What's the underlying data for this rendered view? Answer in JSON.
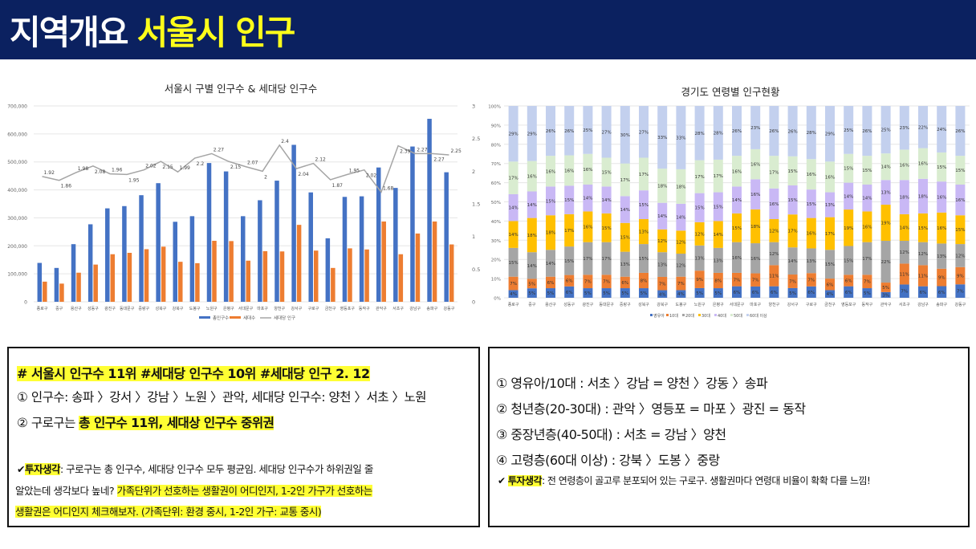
{
  "header": {
    "title_white": "지역개요",
    "title_yellow": "서울시 인구"
  },
  "chart_data": [
    {
      "type": "bar",
      "title": "서울시 구별 인구수 & 세대당 인구수",
      "categories": [
        "종로구",
        "중구",
        "용산구",
        "성동구",
        "광진구",
        "동대문구",
        "중랑구",
        "성북구",
        "강북구",
        "도봉구",
        "노원구",
        "은평구",
        "서대문구",
        "마포구",
        "양천구",
        "강서구",
        "구로구",
        "금천구",
        "영등포구",
        "동작구",
        "관악구",
        "서초구",
        "강남구",
        "송파구",
        "강동구"
      ],
      "series": [
        {
          "name": "총인구수",
          "axis": "left",
          "type": "bar",
          "color": "#4472c4",
          "values": [
            139000,
            121000,
            206000,
            277000,
            334000,
            342000,
            381000,
            424000,
            286000,
            306000,
            496000,
            466000,
            306000,
            363000,
            433000,
            561000,
            391000,
            227000,
            375000,
            377000,
            480000,
            407000,
            555000,
            654000,
            463000
          ]
        },
        {
          "name": "세대수",
          "axis": "left",
          "type": "bar",
          "color": "#ed7d31",
          "values": [
            72000,
            65000,
            104000,
            133000,
            170000,
            175000,
            188000,
            197000,
            143000,
            138000,
            218000,
            217000,
            147000,
            181000,
            180000,
            275000,
            183000,
            121000,
            191000,
            187000,
            287000,
            170000,
            244000,
            287000,
            205000
          ]
        },
        {
          "name": "세대당 인구",
          "axis": "right",
          "type": "line",
          "color": "#a5a5a5",
          "values": [
            1.92,
            1.86,
            1.98,
            2.08,
            1.96,
            1.95,
            2.02,
            2.15,
            1.99,
            2.2,
            2.27,
            2.15,
            2.07,
            2.0,
            2.4,
            2.04,
            2.12,
            1.87,
            1.95,
            2.02,
            1.68,
            2.39,
            2.27,
            2.27,
            2.25
          ]
        }
      ],
      "y_left": {
        "ylim": [
          0,
          700000
        ],
        "ticks": [
          "0",
          "100,000",
          "200,000",
          "300,000",
          "400,000",
          "500,000",
          "600,000",
          "700,000"
        ]
      },
      "y_right": {
        "ylim": [
          0,
          3
        ],
        "ticks": [
          "0",
          "0.5",
          "1",
          "1.5",
          "2",
          "2.5",
          "3"
        ]
      },
      "legend": "bottom",
      "grid": true
    },
    {
      "type": "bar",
      "stacked": true,
      "percent": true,
      "title": "경기도 연령별 인구현황",
      "categories": [
        "종로구",
        "중구",
        "용산구",
        "성동구",
        "광진구",
        "동대문구",
        "중랑구",
        "성북구",
        "강북구",
        "도봉구",
        "노원구",
        "은평구",
        "서대문구",
        "마포구",
        "양천구",
        "강서구",
        "구로구",
        "금천구",
        "영등포구",
        "동작구",
        "관악구",
        "서초구",
        "강남구",
        "송파구",
        "강동구"
      ],
      "series": [
        {
          "name": "영유아",
          "color": "#4472c4",
          "values": [
            4,
            5,
            5,
            6,
            5,
            5,
            5,
            5,
            4,
            4,
            5,
            5,
            6,
            6,
            6,
            5,
            6,
            4,
            6,
            5,
            3,
            7,
            6,
            6,
            7
          ]
        },
        {
          "name": "10대",
          "color": "#ed7d31",
          "values": [
            7,
            5,
            6,
            6,
            7,
            7,
            6,
            8,
            7,
            7,
            9,
            8,
            7,
            7,
            11,
            7,
            7,
            6,
            6,
            7,
            5,
            11,
            11,
            9,
            9
          ]
        },
        {
          "name": "20대",
          "color": "#a5a5a5",
          "values": [
            15,
            14,
            14,
            15,
            17,
            17,
            13,
            15,
            13,
            12,
            13,
            13,
            16,
            16,
            12,
            14,
            13,
            15,
            15,
            17,
            22,
            12,
            12,
            13,
            12
          ]
        },
        {
          "name": "30대",
          "color": "#ffc000",
          "values": [
            14,
            18,
            18,
            17,
            16,
            15,
            15,
            13,
            12,
            12,
            12,
            14,
            15,
            18,
            12,
            17,
            16,
            17,
            19,
            16,
            19,
            14,
            15,
            16,
            15
          ]
        },
        {
          "name": "40대",
          "color": "#c9b8f5",
          "values": [
            14,
            14,
            15,
            15,
            14,
            14,
            14,
            15,
            14,
            14,
            15,
            15,
            14,
            16,
            16,
            15,
            15,
            13,
            14,
            14,
            13,
            18,
            18,
            16,
            16
          ]
        },
        {
          "name": "50대",
          "color": "#d9ecd0",
          "values": [
            17,
            16,
            16,
            16,
            16,
            15,
            17,
            17,
            18,
            18,
            17,
            17,
            16,
            16,
            17,
            15,
            16,
            16,
            15,
            15,
            14,
            16,
            16,
            15,
            15
          ]
        },
        {
          "name": "60대 이상",
          "color": "#c3d0ee",
          "values": [
            29,
            29,
            26,
            26,
            25,
            27,
            30,
            27,
            33,
            33,
            28,
            28,
            26,
            23,
            26,
            26,
            28,
            29,
            25,
            26,
            25,
            23,
            22,
            24,
            26
          ]
        }
      ],
      "ylim": [
        0,
        100
      ],
      "ticks": [
        "0%",
        "10%",
        "20%",
        "30%",
        "40%",
        "50%",
        "60%",
        "70%",
        "80%",
        "90%",
        "100%"
      ],
      "legend": "bottom",
      "grid": true
    }
  ],
  "left_panel": {
    "tag_line": "# 서울시 인구수 11위 #세대당 인구수 10위 #세대당 인구 2. 12",
    "item1": "① 인구수: 송파 〉강서 〉강남 〉노원 〉관악, 세대당 인구수: 양천 〉서초 〉노원",
    "item2_prefix": "② 구로구는 ",
    "item2_highlight": "총 인구수 11위, 세대상 인구수 중위권",
    "check_label": "투자생각",
    "note_part1": ": 구로구는 총 인구수, 세대당 인구수 모두 평균임. 세대당 인구수가 하위권일 줄",
    "note_part2": "알았는데 생각보다 높네? ",
    "note_highlight1": "가족단위가 선호하는 생활권이 어디인지, 1-2인 가구가 선호하는",
    "note_highlight2": "생활권은 어디인지 체크해보자. (가족단위: 환경 중시, 1-2인 가구: 교통 중시)"
  },
  "right_panel": {
    "item1": "① 영유아/10대 : 서초 〉강남 = 양천 〉강동 〉송파",
    "item2": "② 청년층(20-30대) : 관악 〉영등포 = 마포 〉광진 = 동작",
    "item3": "③ 중장년층(40-50대) : 서초 = 강남 〉양천",
    "item4": "④ 고령층(60대 이상) : 강북 〉도봉 〉중랑",
    "check_label": "투자생각",
    "note": ": 전 연령층이 골고루 분포되어 있는 구로구. 생활권마다 연령대 비율이 확확 다를 느낌!"
  }
}
